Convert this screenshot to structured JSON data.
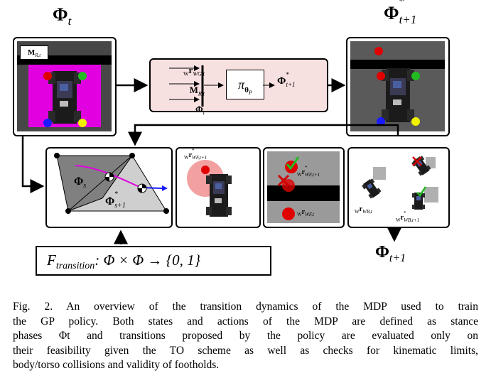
{
  "diagram": {
    "phi_t_top": "Φ",
    "phi_t_top_sub": "t",
    "phi_next_top": "Φ",
    "phi_next_top_sup": "*",
    "phi_next_top_sub": "t+1",
    "map_label": "M",
    "map_label_sub": "R,t",
    "policy_inputs": [
      {
        "pre": "W",
        "main": "r",
        "sub": "WG,t"
      },
      {
        "pre": "",
        "main": "M",
        "sub": "R,t"
      },
      {
        "pre": "",
        "main": "Φ",
        "sub": "t"
      }
    ],
    "policy_symbol": "π",
    "policy_sub": "θ",
    "policy_sub_sub": "P",
    "policy_output": "Φ",
    "policy_output_sup": "*",
    "policy_output_sub": "t+1",
    "phase_s": "Φ",
    "phase_s_sub": "s",
    "phase_s1": "Φ",
    "phase_s1_sup": "*",
    "phase_s1_sub": "s+1",
    "foot_target_label": {
      "pre": "W",
      "main": "r",
      "sub": "WF,t+1",
      "sup": "*"
    },
    "foothold_label_1": {
      "pre": "W",
      "main": "r",
      "sub": "WF,t+1",
      "sup": "*"
    },
    "foothold_label_2": {
      "pre": "W",
      "main": "r",
      "sub": "WF,t"
    },
    "body_label_1": {
      "pre": "W",
      "main": "r",
      "sub": "WB,t"
    },
    "body_label_2": {
      "pre": "W",
      "main": "r",
      "sub": "WB,t+1",
      "sup": "*"
    },
    "phi_bottom": "Φ",
    "phi_bottom_sub": "t+1",
    "transition_fn": "F",
    "transition_fn_sub": "transition",
    "transition_rest": ": Φ × Φ → {0, 1}"
  },
  "caption": {
    "lines": [
      "Fig. 2.   An overview of the transition dynamics of the MDP used to train",
      "the GP policy. Both states and actions of the MDP are defined as stance",
      "phases Φt and transitions proposed by the policy are evaluated only on",
      "their feasibility given the TO scheme as well as checks for kinematic limits,",
      "body/torso collisions and validity of footholds."
    ]
  },
  "colors": {
    "magenta": "#e000e0",
    "dark_gray": "#474747",
    "mid_gray": "#808080",
    "light_gray": "#cfcfcf",
    "policy_box": "#f7e0e0",
    "accent_red": "#e00000",
    "accent_blue": "#1a1aff",
    "accent_green": "#22bb22"
  }
}
